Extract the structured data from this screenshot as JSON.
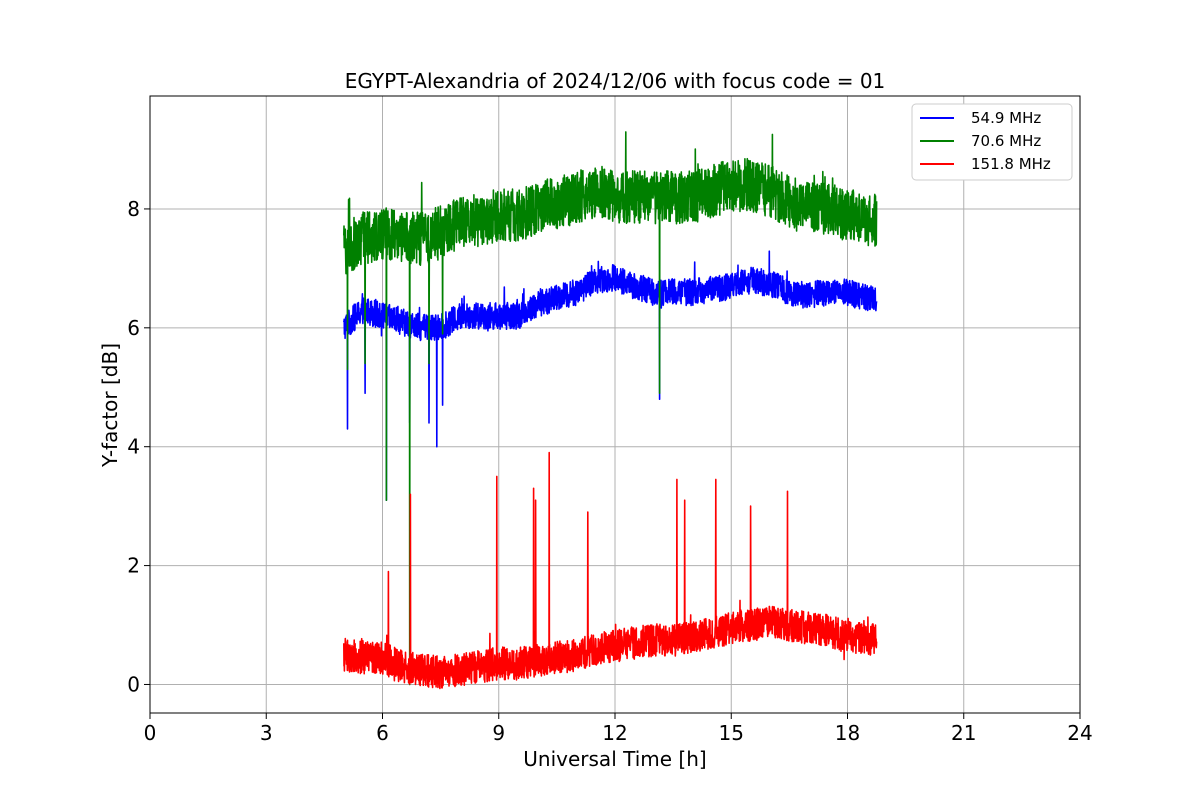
{
  "chart_data": {
    "type": "line",
    "title": "EGYPT-Alexandria of 2024/12/06 with focus code = 01",
    "xlabel": "Universal Time [h]",
    "ylabel": "Y-factor [dB]",
    "xlim": [
      0,
      24
    ],
    "ylim": [
      -0.48,
      9.9
    ],
    "xticks": [
      0,
      3,
      6,
      9,
      12,
      15,
      18,
      21,
      24
    ],
    "yticks": [
      0,
      2,
      4,
      6,
      8
    ],
    "grid": true,
    "legend_position": "top-right",
    "x_range_data": [
      5.0,
      18.75
    ],
    "series": [
      {
        "name": " 54.9 MHz",
        "color": "#0000ff",
        "x": [
          5.0,
          5.5,
          6.0,
          6.5,
          7.0,
          7.5,
          8.0,
          8.5,
          9.0,
          9.5,
          10.0,
          10.5,
          11.0,
          11.5,
          12.0,
          12.5,
          13.0,
          13.5,
          14.0,
          14.5,
          15.0,
          15.5,
          16.0,
          16.5,
          17.0,
          17.5,
          18.0,
          18.5,
          18.75
        ],
        "y": [
          6.0,
          6.3,
          6.2,
          6.1,
          6.0,
          6.0,
          6.2,
          6.2,
          6.2,
          6.2,
          6.4,
          6.5,
          6.6,
          6.8,
          6.85,
          6.7,
          6.6,
          6.6,
          6.6,
          6.65,
          6.7,
          6.8,
          6.75,
          6.6,
          6.55,
          6.6,
          6.6,
          6.5,
          6.5
        ],
        "noise": 0.45,
        "spikes": [
          {
            "x": 5.1,
            "y": 4.3
          },
          {
            "x": 5.55,
            "y": 4.9
          },
          {
            "x": 6.1,
            "y": 3.1
          },
          {
            "x": 6.7,
            "y": 4.4
          },
          {
            "x": 7.2,
            "y": 4.4
          },
          {
            "x": 7.4,
            "y": 4.0
          },
          {
            "x": 7.55,
            "y": 4.7
          },
          {
            "x": 13.15,
            "y": 4.8
          }
        ]
      },
      {
        "name": " 70.6 MHz",
        "color": "#008000",
        "x": [
          5.0,
          5.5,
          6.0,
          6.5,
          7.0,
          7.5,
          8.0,
          8.5,
          9.0,
          9.5,
          10.0,
          10.5,
          11.0,
          11.5,
          12.0,
          12.5,
          13.0,
          13.5,
          14.0,
          14.5,
          15.0,
          15.5,
          16.0,
          16.5,
          17.0,
          17.5,
          18.0,
          18.5,
          18.75
        ],
        "y": [
          7.3,
          7.5,
          7.6,
          7.5,
          7.5,
          7.6,
          7.8,
          7.8,
          7.9,
          7.9,
          8.0,
          8.1,
          8.2,
          8.3,
          8.2,
          8.2,
          8.2,
          8.2,
          8.2,
          8.3,
          8.4,
          8.4,
          8.3,
          8.1,
          8.0,
          8.0,
          7.9,
          7.8,
          7.8
        ],
        "noise": 0.9,
        "spikes": [
          {
            "x": 5.1,
            "y": 5.3
          },
          {
            "x": 5.55,
            "y": 5.4
          },
          {
            "x": 6.1,
            "y": 3.1
          },
          {
            "x": 6.7,
            "y": 0.0
          },
          {
            "x": 7.2,
            "y": 5.4
          },
          {
            "x": 7.55,
            "y": 5.9
          },
          {
            "x": 13.15,
            "y": 4.9
          }
        ]
      },
      {
        "name": "151.8 MHz",
        "color": "#ff0000",
        "x": [
          5.0,
          5.5,
          6.0,
          6.5,
          7.0,
          7.5,
          8.0,
          8.5,
          9.0,
          9.5,
          10.0,
          10.5,
          11.0,
          11.5,
          12.0,
          12.5,
          13.0,
          13.5,
          14.0,
          14.5,
          15.0,
          15.5,
          16.0,
          16.5,
          17.0,
          17.5,
          18.0,
          18.5,
          18.75
        ],
        "y": [
          0.5,
          0.45,
          0.45,
          0.3,
          0.25,
          0.2,
          0.25,
          0.3,
          0.35,
          0.35,
          0.4,
          0.45,
          0.5,
          0.6,
          0.65,
          0.7,
          0.75,
          0.75,
          0.8,
          0.85,
          0.95,
          1.0,
          1.05,
          1.0,
          0.95,
          0.9,
          0.8,
          0.75,
          0.75
        ],
        "noise": 0.55,
        "spikes": [
          {
            "x": 6.15,
            "y": 1.9
          },
          {
            "x": 6.72,
            "y": 3.2
          },
          {
            "x": 8.95,
            "y": 3.5
          },
          {
            "x": 9.9,
            "y": 3.3
          },
          {
            "x": 9.95,
            "y": 3.1
          },
          {
            "x": 10.3,
            "y": 3.9
          },
          {
            "x": 11.3,
            "y": 2.9
          },
          {
            "x": 13.6,
            "y": 3.45
          },
          {
            "x": 13.8,
            "y": 3.1
          },
          {
            "x": 14.6,
            "y": 3.45
          },
          {
            "x": 15.5,
            "y": 3.0
          },
          {
            "x": 16.45,
            "y": 3.25
          }
        ]
      }
    ]
  }
}
